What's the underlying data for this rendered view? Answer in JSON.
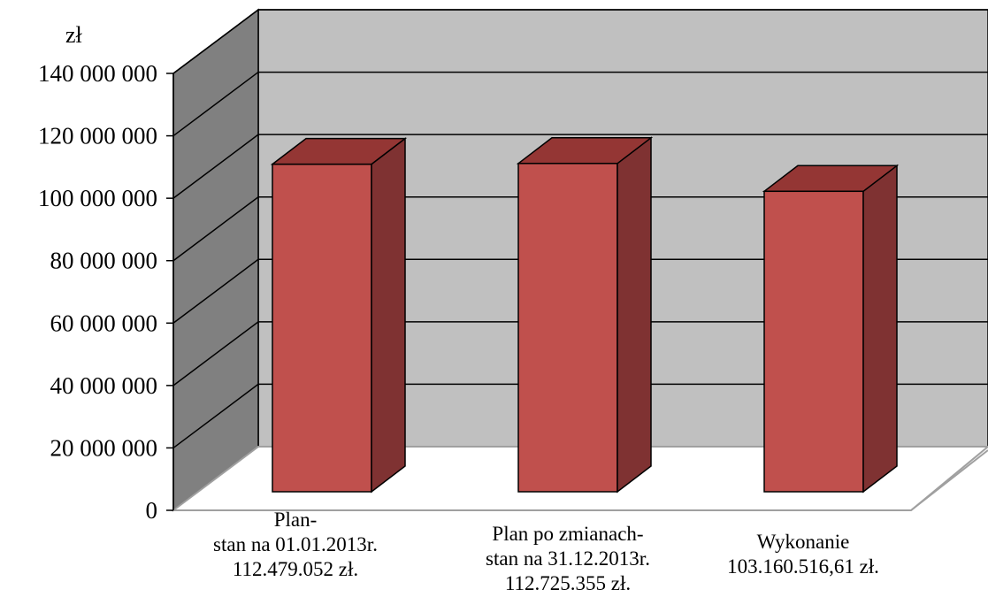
{
  "chart_data": {
    "type": "bar",
    "unit_label": "zł",
    "categories": [
      [
        "Plan-",
        "stan na 01.01.2013r.",
        "112.479.052 zł."
      ],
      [
        "Plan po zmianach-",
        "stan na 31.12.2013r.",
        "112.725.355 zł."
      ],
      [
        "Wykonanie",
        "103.160.516,61 zł."
      ]
    ],
    "values": [
      112479052,
      112725355,
      103160516.61
    ],
    "ylim": [
      0,
      140000000
    ],
    "yticks": [
      0,
      20000000,
      40000000,
      60000000,
      80000000,
      100000000,
      120000000,
      140000000
    ],
    "ytick_labels": [
      "0",
      "20 000 000",
      "40 000 000",
      "60 000 000",
      "80 000 000",
      "100 000 000",
      "120 000 000",
      "140 000 000"
    ],
    "grid": true,
    "style": "3d-column",
    "colors": {
      "bar_front": "#C0504D",
      "bar_top": "#943634",
      "bar_side": "#7F3232",
      "back_wall": "#C0C0C0",
      "side_wall": "#808080",
      "floor": "#ffffff"
    }
  }
}
